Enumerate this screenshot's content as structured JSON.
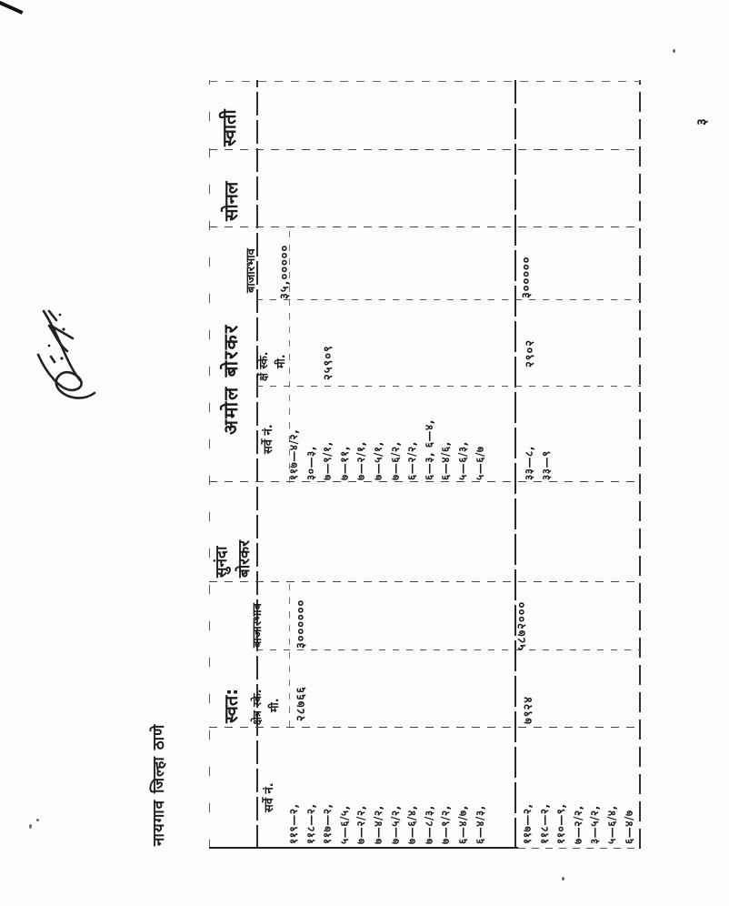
{
  "page": {
    "title": "नायगाव जिल्हा ठाणे",
    "page_number": "३"
  },
  "table": {
    "group_headers": {
      "swatah": "स्वत:",
      "sunanda_line1": "सुनंदा",
      "sunanda_line2": "बोरकर",
      "amol": "अमोल बोरकर",
      "sonal": "सोनल",
      "swati": "स्वाती"
    },
    "sub_headers": {
      "survey_no_left": "सर्वे नं.",
      "area_left_line1": "क्षेत्र स्के.",
      "area_left_line2": "मी.",
      "market_left": "बाजारभाव",
      "survey_no_amol": "सर्वे नं.",
      "area_amol_line1": "क्षें स्के.",
      "area_amol_line2": "मी.",
      "market_amol": "बाजारभाव"
    },
    "rows": [
      {
        "survey_numbers_self": [
          "११९—२,",
          "११८—२,",
          "११७—२,",
          "५—६/५,",
          "७—२/२,",
          "७—४/२,",
          "७—५/२,",
          "७—६/४,",
          "७—८/३,",
          "७—९/२,",
          "६—४/७,",
          "६—४/३,"
        ],
        "area_self": "२८७६६",
        "market_self": "३००००००",
        "sunanda": "",
        "survey_numbers_amol": [
          "११७—४/२,",
          "३०—३,",
          "७—९/१,",
          "७—११,",
          "७—२/१,",
          "७—५/१,",
          "७—६/२,",
          "६—२/२,",
          "६—३, ६—४,",
          "६—४/६,",
          "५—६/३,",
          "५—६/७"
        ],
        "area_amol": "२५९०९",
        "market_amol": "३५,०००००",
        "sonal": "",
        "swati": ""
      },
      {
        "survey_numbers_self": [
          "११७—२,",
          "११८—२,",
          "११०—९,",
          "७—२/२,",
          "३—५/२,",
          "५—६/४,",
          "६—४/७"
        ],
        "area_self": "७९२४",
        "market_self": "५८७२०००",
        "sunanda": "",
        "survey_numbers_amol": [
          "३३—८,",
          "३३—९"
        ],
        "area_amol": "२९०२",
        "market_amol": "३०००००",
        "sonal": "",
        "swati": ""
      }
    ]
  }
}
